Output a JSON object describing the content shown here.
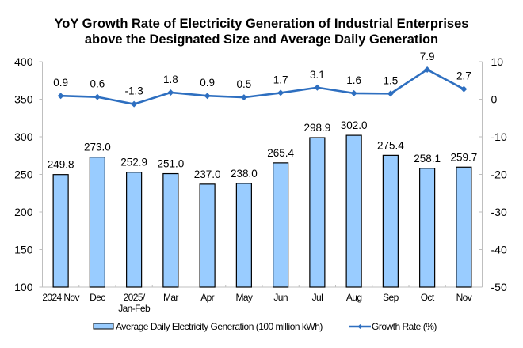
{
  "chart_data": {
    "type": "bar",
    "title_lines": [
      "YoY Growth Rate of Electricity Generation of Industrial Enterprises",
      "above the Designated Size and Average Daily Generation"
    ],
    "categories": [
      [
        "2024 Nov"
      ],
      [
        "Dec"
      ],
      [
        "2025/",
        "Jan-Feb"
      ],
      [
        "Mar"
      ],
      [
        "Apr"
      ],
      [
        "May"
      ],
      [
        "Jun"
      ],
      [
        "Jul"
      ],
      [
        "Aug"
      ],
      [
        "Sep"
      ],
      [
        "Oct"
      ],
      [
        "Nov"
      ]
    ],
    "series": [
      {
        "name": "Average Daily Electricity Generation (100 million kWh)",
        "type": "bar",
        "axis": "left",
        "color": "#99CCFF",
        "edge_color": "#000000",
        "values": [
          249.8,
          273.0,
          252.9,
          251.0,
          237.0,
          238.0,
          265.4,
          298.9,
          302.0,
          275.4,
          258.1,
          259.7
        ],
        "labels": [
          "249.8",
          "273.0",
          "252.9",
          "251.0",
          "237.0",
          "238.0",
          "265.4",
          "298.9",
          "302.0",
          "275.4",
          "258.1",
          "259.7"
        ]
      },
      {
        "name": "Growth Rate (%)",
        "type": "line",
        "axis": "right",
        "color": "#2E6FC0",
        "marker": "diamond",
        "values": [
          0.9,
          0.6,
          -1.3,
          1.8,
          0.9,
          0.5,
          1.7,
          3.1,
          1.6,
          1.5,
          7.9,
          2.7
        ],
        "labels": [
          "0.9",
          "0.6",
          "-1.3",
          "1.8",
          "0.9",
          "0.5",
          "1.7",
          "3.1",
          "1.6",
          "1.5",
          "7.9",
          "2.7"
        ]
      }
    ],
    "y_left": {
      "min": 100,
      "max": 400,
      "ticks": [
        100,
        150,
        200,
        250,
        300,
        350,
        400
      ]
    },
    "y_right": {
      "min": -50,
      "max": 10,
      "ticks": [
        -50,
        -40,
        -30,
        -20,
        -10,
        0,
        10
      ]
    },
    "xlabel": "",
    "ylabel": "",
    "grid": false,
    "legend_position": "bottom"
  }
}
